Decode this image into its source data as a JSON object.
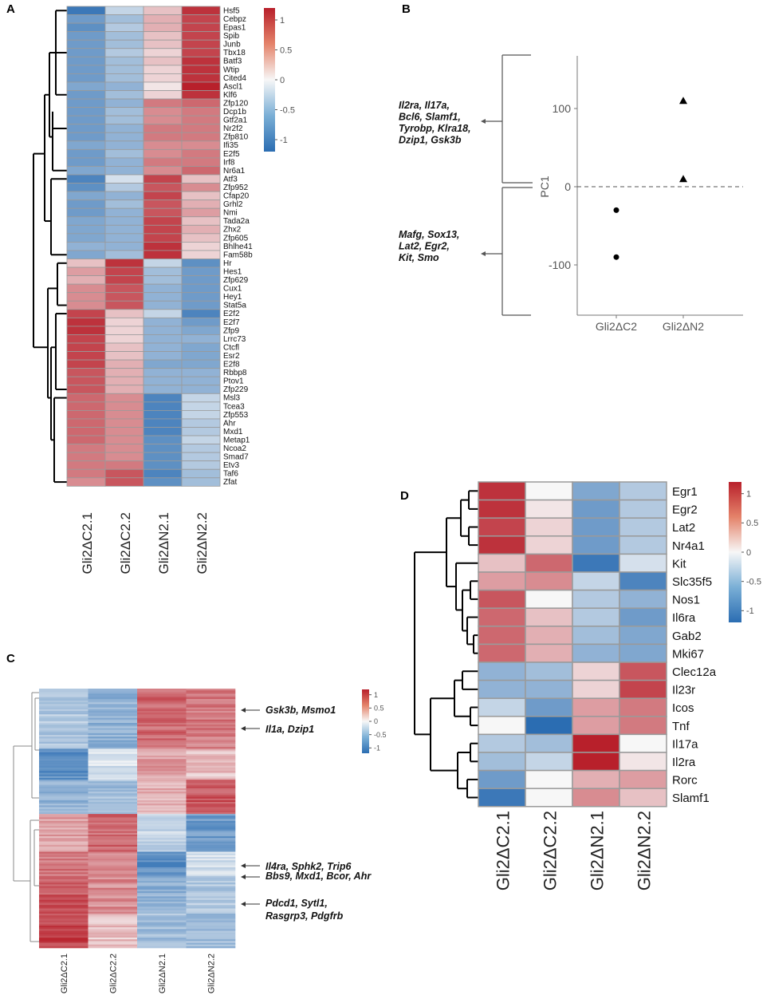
{
  "panels": {
    "a": "A",
    "b": "B",
    "c": "C",
    "d": "D"
  },
  "colors": {
    "low": "#2b6db2",
    "mid": "#f7f7f7",
    "high": "#b8202b",
    "border": "#9a9a9a"
  },
  "chart_data": [
    {
      "type": "heatmap",
      "panel": "A",
      "samples": [
        "Gli2ΔC2.1",
        "Gli2ΔC2.2",
        "Gli2ΔN2.1",
        "Gli2ΔN2.2"
      ],
      "genes": [
        "Hsf5",
        "Cebpz",
        "Epas1",
        "Spib",
        "Junb",
        "Tbx18",
        "Batf3",
        "Wtip",
        "Cited4",
        "Ascl1",
        "Klf6",
        "Zfp120",
        "Dcp1b",
        "Gtf2a1",
        "Nr2f2",
        "Zfp810",
        "Ifi35",
        "E2f5",
        "Irf8",
        "Nr6a1",
        "Atf3",
        "Zfp952",
        "Cfap20",
        "Grhl2",
        "Nmi",
        "Tada2a",
        "Zhx2",
        "Zfp605",
        "Bhlhe41",
        "Fam58b",
        "Hr",
        "Hes1",
        "Zfp629",
        "Cux1",
        "Hey1",
        "Stat5a",
        "E2f2",
        "E2f7",
        "Zfp9",
        "Lrrc73",
        "Ctcfl",
        "Esr2",
        "E2f8",
        "Rbbp8",
        "Ptov1",
        "Zfp229",
        "Msl3",
        "Tcea3",
        "Zfp553",
        "Ahr",
        "Mxd1",
        "Metap1",
        "Ncoa2",
        "Smad7",
        "Etv3",
        "Taf6",
        "Zfat"
      ],
      "values": [
        [
          -1.1,
          -0.3,
          0.3,
          1.1
        ],
        [
          -0.8,
          -0.5,
          0.4,
          1.0
        ],
        [
          -0.9,
          -0.4,
          0.4,
          1.0
        ],
        [
          -0.8,
          -0.5,
          0.3,
          1.0
        ],
        [
          -0.8,
          -0.5,
          0.3,
          1.0
        ],
        [
          -0.8,
          -0.4,
          0.2,
          1.0
        ],
        [
          -0.8,
          -0.5,
          0.3,
          1.1
        ],
        [
          -0.8,
          -0.5,
          0.2,
          1.1
        ],
        [
          -0.8,
          -0.5,
          0.2,
          1.1
        ],
        [
          -0.7,
          -0.6,
          0.1,
          1.2
        ],
        [
          -0.8,
          -0.5,
          0.2,
          1.1
        ],
        [
          -0.8,
          -0.6,
          0.7,
          0.8
        ],
        [
          -0.8,
          -0.5,
          0.6,
          0.7
        ],
        [
          -0.8,
          -0.5,
          0.6,
          0.7
        ],
        [
          -0.8,
          -0.6,
          0.7,
          0.7
        ],
        [
          -0.8,
          -0.6,
          0.7,
          0.7
        ],
        [
          -0.7,
          -0.6,
          0.6,
          0.6
        ],
        [
          -0.8,
          -0.5,
          0.6,
          0.7
        ],
        [
          -0.8,
          -0.6,
          0.7,
          0.7
        ],
        [
          -0.7,
          -0.6,
          0.6,
          0.8
        ],
        [
          -1.0,
          -0.2,
          1.0,
          0.3
        ],
        [
          -0.9,
          -0.4,
          0.9,
          0.6
        ],
        [
          -0.7,
          -0.6,
          1.0,
          0.3
        ],
        [
          -0.8,
          -0.5,
          0.9,
          0.4
        ],
        [
          -0.8,
          -0.6,
          0.9,
          0.5
        ],
        [
          -0.7,
          -0.6,
          1.0,
          0.3
        ],
        [
          -0.7,
          -0.6,
          1.0,
          0.4
        ],
        [
          -0.7,
          -0.6,
          1.0,
          0.3
        ],
        [
          -0.6,
          -0.6,
          1.1,
          0.2
        ],
        [
          -0.7,
          -0.5,
          1.1,
          0.2
        ],
        [
          0.3,
          1.1,
          -0.3,
          -0.9
        ],
        [
          0.5,
          1.0,
          -0.5,
          -0.8
        ],
        [
          0.4,
          1.0,
          -0.5,
          -0.8
        ],
        [
          0.6,
          0.9,
          -0.6,
          -0.8
        ],
        [
          0.6,
          0.9,
          -0.6,
          -0.8
        ],
        [
          0.6,
          0.9,
          -0.6,
          -0.8
        ],
        [
          1.0,
          0.3,
          -0.3,
          -1.0
        ],
        [
          1.1,
          0.2,
          -0.6,
          -0.8
        ],
        [
          1.1,
          0.2,
          -0.6,
          -0.7
        ],
        [
          1.0,
          0.2,
          -0.6,
          -0.6
        ],
        [
          1.0,
          0.3,
          -0.6,
          -0.7
        ],
        [
          1.0,
          0.3,
          -0.6,
          -0.7
        ],
        [
          1.0,
          0.4,
          -0.7,
          -0.7
        ],
        [
          0.9,
          0.4,
          -0.6,
          -0.6
        ],
        [
          0.9,
          0.4,
          -0.6,
          -0.6
        ],
        [
          0.9,
          0.4,
          -0.6,
          -0.6
        ],
        [
          0.8,
          0.6,
          -1.0,
          -0.3
        ],
        [
          0.8,
          0.6,
          -1.0,
          -0.3
        ],
        [
          0.8,
          0.6,
          -1.0,
          -0.3
        ],
        [
          0.8,
          0.6,
          -1.0,
          -0.4
        ],
        [
          0.8,
          0.6,
          -1.0,
          -0.4
        ],
        [
          0.8,
          0.6,
          -0.9,
          -0.3
        ],
        [
          0.7,
          0.6,
          -0.9,
          -0.4
        ],
        [
          0.7,
          0.6,
          -0.9,
          -0.4
        ],
        [
          0.7,
          0.7,
          -0.9,
          -0.4
        ],
        [
          0.7,
          0.9,
          -1.0,
          -0.5
        ],
        [
          0.6,
          0.9,
          -0.9,
          -0.5
        ]
      ],
      "legend_ticks": [
        "1",
        "0.5",
        "0",
        "-0.5",
        "-1"
      ],
      "vmin": -1.2,
      "vmax": 1.2
    },
    {
      "type": "scatter",
      "panel": "B",
      "ylabel": "PC1",
      "categories": [
        "Gli2ΔC2",
        "Gli2ΔN2"
      ],
      "yticks": [
        100,
        0,
        -100
      ],
      "ylim": [
        -170,
        170
      ],
      "points": [
        {
          "group": "Gli2ΔC2",
          "y": -30,
          "shape": "circle"
        },
        {
          "group": "Gli2ΔC2",
          "y": -90,
          "shape": "circle"
        },
        {
          "group": "Gli2ΔN2",
          "y": 110,
          "shape": "triangle"
        },
        {
          "group": "Gli2ΔN2",
          "y": 10,
          "shape": "triangle"
        }
      ],
      "dashed_line_y": 0,
      "annotations": [
        {
          "lines": [
            "Il2ra, Il17a,",
            "Bcl6, Slamf1,",
            "Tyrobp, Klra18,",
            "Dzip1, Gsk3b"
          ]
        },
        {
          "lines": [
            "Mafg, Sox13,",
            "Lat2, Egr2,",
            "Kit, Smo"
          ]
        }
      ]
    },
    {
      "type": "heatmap",
      "panel": "C",
      "samples": [
        "Gli2ΔC2.1",
        "Gli2ΔC2.2",
        "Gli2ΔN2.1",
        "Gli2ΔN2.2"
      ],
      "blocks": [
        {
          "rows": 35,
          "values": [
            -0.4,
            -0.6,
            0.8,
            0.7
          ]
        },
        {
          "rows": 18,
          "values": [
            -0.9,
            -0.2,
            0.5,
            0.3
          ]
        },
        {
          "rows": 20,
          "values": [
            -0.6,
            -0.5,
            0.4,
            0.9
          ]
        },
        {
          "rows": 22,
          "values": [
            0.5,
            0.8,
            -0.3,
            -0.8
          ]
        },
        {
          "rows": 14,
          "values": [
            0.7,
            0.6,
            -0.9,
            -0.2
          ]
        },
        {
          "rows": 22,
          "values": [
            0.9,
            0.6,
            -0.6,
            -0.4
          ]
        },
        {
          "rows": 20,
          "values": [
            1.0,
            0.3,
            -0.5,
            -0.5
          ]
        }
      ],
      "annotations": [
        {
          "label": "Gsk3b, Msmo1"
        },
        {
          "label": "Il1a, Dzip1"
        },
        {
          "label": "Il4ra, Sphk2, Trip6"
        },
        {
          "label": "Bbs9, Mxd1, Bcor, Ahr"
        },
        {
          "label": "Pdcd1, Sytl1,",
          "label2": "Rasgrp3, Pdgfrb"
        }
      ],
      "legend_ticks": [
        "1",
        "0.5",
        "0",
        "-0.5",
        "-1"
      ],
      "vmin": -1.2,
      "vmax": 1.2
    },
    {
      "type": "heatmap",
      "panel": "D",
      "samples": [
        "Gli2ΔC2.1",
        "Gli2ΔC2.2",
        "Gli2ΔN2.1",
        "Gli2ΔN2.2"
      ],
      "genes": [
        "Egr1",
        "Egr2",
        "Lat2",
        "Nr4a1",
        "Kit",
        "Slc35f5",
        "Nos1",
        "Il6ra",
        "Gab2",
        "Mki67",
        "Clec12a",
        "Il23r",
        "Icos",
        "Tnf",
        "Il17a",
        "Il2ra",
        "Rorc",
        "Slamf1"
      ],
      "values": [
        [
          1.1,
          0.0,
          -0.7,
          -0.4
        ],
        [
          1.1,
          0.1,
          -0.8,
          -0.4
        ],
        [
          1.0,
          0.2,
          -0.8,
          -0.4
        ],
        [
          1.1,
          0.2,
          -0.8,
          -0.4
        ],
        [
          0.3,
          0.8,
          -1.1,
          -0.2
        ],
        [
          0.5,
          0.6,
          -0.3,
          -1.0
        ],
        [
          0.9,
          0.0,
          -0.4,
          -0.6
        ],
        [
          0.8,
          0.3,
          -0.4,
          -0.8
        ],
        [
          0.8,
          0.4,
          -0.5,
          -0.7
        ],
        [
          0.8,
          0.4,
          -0.6,
          -0.7
        ],
        [
          -0.6,
          -0.5,
          0.2,
          0.9
        ],
        [
          -0.6,
          -0.6,
          0.2,
          1.0
        ],
        [
          -0.3,
          -0.8,
          0.5,
          0.7
        ],
        [
          0.0,
          -1.2,
          0.5,
          0.7
        ],
        [
          -0.4,
          -0.5,
          1.3,
          0.0
        ],
        [
          -0.5,
          -0.3,
          1.2,
          0.1
        ],
        [
          -0.8,
          0.0,
          0.4,
          0.5
        ],
        [
          -1.1,
          0.0,
          0.6,
          0.3
        ]
      ],
      "legend_ticks": [
        "1",
        "0.5",
        "0",
        "-0.5",
        "-1"
      ],
      "vmin": -1.2,
      "vmax": 1.2
    }
  ]
}
